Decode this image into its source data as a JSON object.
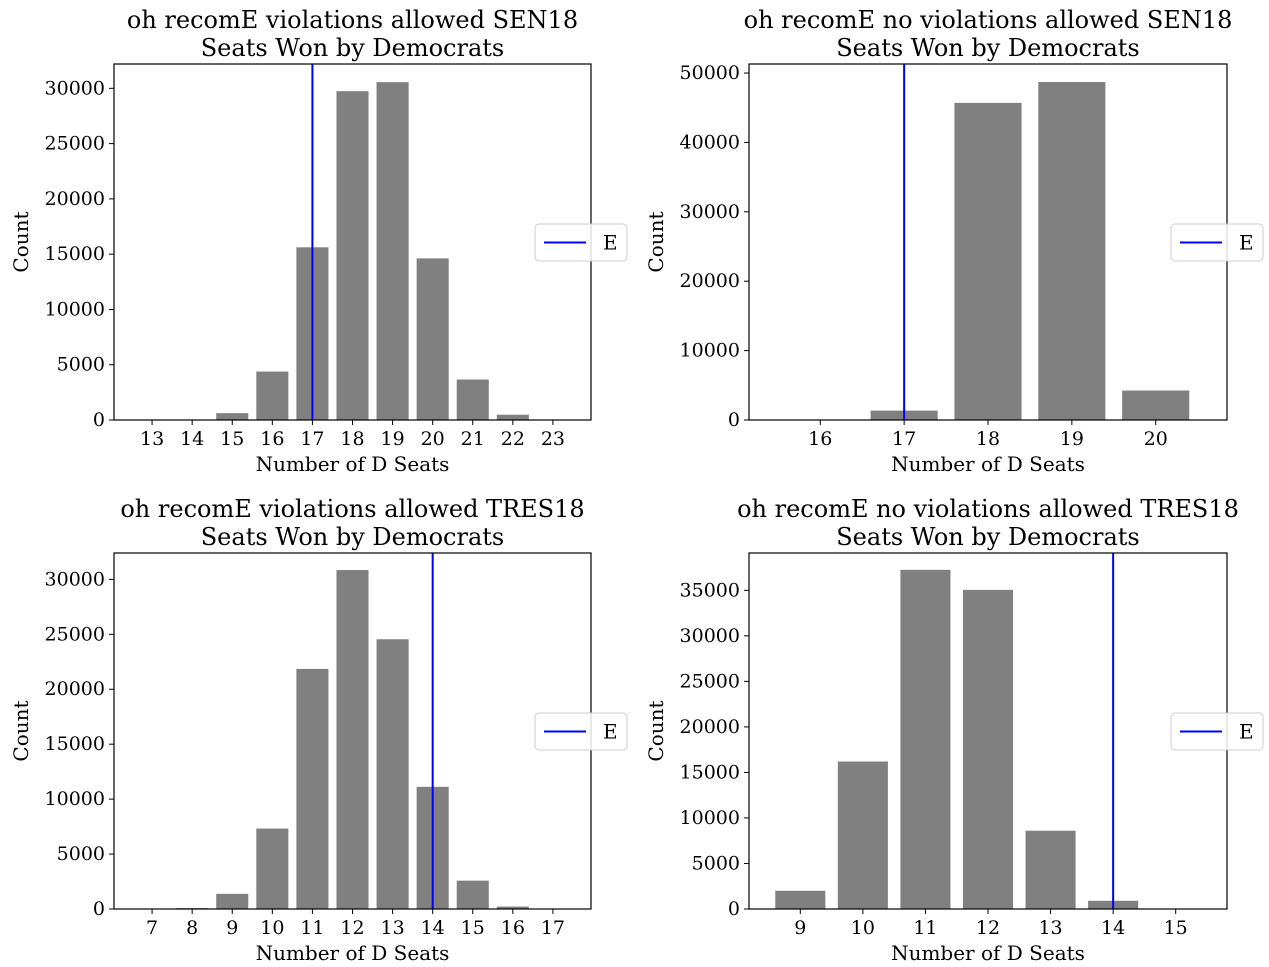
{
  "chart_data": [
    {
      "type": "bar",
      "title": "oh recomE violations allowed SEN18\nSeats Won by Democrats",
      "xlabel": "Number of D Seats",
      "ylabel": "Count",
      "categories": [
        "13",
        "14",
        "15",
        "16",
        "17",
        "18",
        "19",
        "20",
        "21",
        "22",
        "23"
      ],
      "values": [
        0,
        10,
        620,
        4380,
        15620,
        29740,
        30560,
        14620,
        3660,
        480,
        20
      ],
      "yticks": [
        0,
        5000,
        10000,
        15000,
        20000,
        25000,
        30000
      ],
      "ylim": [
        0,
        32200
      ],
      "bar_color": "#808080",
      "reference_line": {
        "x": "17",
        "label": "E",
        "color": "#0000ff"
      },
      "legend": {
        "entries": [
          "E"
        ],
        "placement": "center-right"
      },
      "grid": false
    },
    {
      "type": "bar",
      "title": "oh recomE no violations allowed SEN18\nSeats Won by Democrats",
      "xlabel": "Number of D Seats",
      "ylabel": "Count",
      "categories": [
        "16",
        "17",
        "18",
        "19",
        "20"
      ],
      "values": [
        50,
        1350,
        45700,
        48700,
        4250
      ],
      "yticks": [
        0,
        10000,
        20000,
        30000,
        40000,
        50000
      ],
      "ylim": [
        0,
        51300
      ],
      "bar_color": "#808080",
      "reference_line": {
        "x": "17",
        "label": "E",
        "color": "#0000ff"
      },
      "legend": {
        "entries": [
          "E"
        ],
        "placement": "center-right"
      },
      "grid": false
    },
    {
      "type": "bar",
      "title": "oh recomE violations allowed TRES18\nSeats Won by Democrats",
      "xlabel": "Number of D Seats",
      "ylabel": "Count",
      "categories": [
        "7",
        "8",
        "9",
        "10",
        "11",
        "12",
        "13",
        "14",
        "15",
        "16",
        "17"
      ],
      "values": [
        0,
        80,
        1380,
        7320,
        21850,
        30850,
        24550,
        11120,
        2580,
        220,
        10
      ],
      "yticks": [
        0,
        5000,
        10000,
        15000,
        20000,
        25000,
        30000
      ],
      "ylim": [
        0,
        32400
      ],
      "bar_color": "#808080",
      "reference_line": {
        "x": "14",
        "label": "E",
        "color": "#0000ff"
      },
      "legend": {
        "entries": [
          "E"
        ],
        "placement": "center-right"
      },
      "grid": false
    },
    {
      "type": "bar",
      "title": "oh recomE no violations allowed TRES18\nSeats Won by Democrats",
      "xlabel": "Number of D Seats",
      "ylabel": "Count",
      "categories": [
        "9",
        "10",
        "11",
        "12",
        "13",
        "14",
        "15"
      ],
      "values": [
        2000,
        16200,
        37250,
        35050,
        8600,
        900,
        15
      ],
      "yticks": [
        0,
        5000,
        10000,
        15000,
        20000,
        25000,
        30000,
        35000
      ],
      "ylim": [
        0,
        39100
      ],
      "bar_color": "#808080",
      "reference_line": {
        "x": "14",
        "label": "E",
        "color": "#0000ff"
      },
      "legend": {
        "entries": [
          "E"
        ],
        "placement": "center-right"
      },
      "grid": false
    }
  ]
}
